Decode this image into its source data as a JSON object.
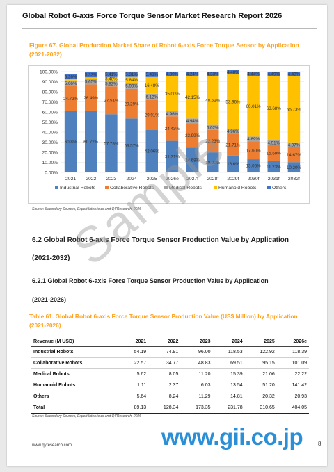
{
  "header": {
    "title": "Global Robot 6-axis Force Torque Sensor Market Research Report 2026"
  },
  "figure": {
    "title": "Figure 67.   Global Production Market Share of Robot 6-axis Force Torque Sensor by Application (2021-2032)",
    "source": "Source: Secondary Sources, Expert Interviews and QYResearch, 2026"
  },
  "chart_data": {
    "type": "bar",
    "stacked": true,
    "categories": [
      "2021",
      "2022",
      "2023",
      "2024",
      "2025",
      "2026e",
      "2027f",
      "2028f",
      "2029f",
      "2030f",
      "2031f",
      "2032f"
    ],
    "ylim": [
      0,
      100
    ],
    "yticks": [
      "0.00%",
      "10.00%",
      "20.00%",
      "30.00%",
      "40.00%",
      "50.00%",
      "60.00%",
      "70.00%",
      "80.00%",
      "90.00%",
      "100.00%"
    ],
    "legend_position": "bottom",
    "series": [
      {
        "name": "Industrial Robots",
        "color": "#4e81bd",
        "values": [
          60.8,
          60.72,
          57.78,
          53.57,
          42.06,
          31.31,
          24.68,
          19.9,
          16.6,
          13.06,
          11.23,
          10.2
        ],
        "labels": [
          "60.8%",
          "60.72%",
          "57.78%",
          "53.57%",
          "42.06%",
          "31.31%",
          "24.68%",
          "19.90%",
          "16.6%",
          "13.06%",
          "11.23%",
          "10.20%"
        ]
      },
      {
        "name": "Collaborative Robots",
        "color": "#ed7d31",
        "values": [
          24.72,
          26.49,
          27.51,
          29.29,
          29.91,
          24.43,
          23.99,
          22.23,
          21.71,
          17.6,
          15.69,
          14.67
        ],
        "labels": [
          "24.72%",
          "26.49%",
          "27.51%",
          "29.29%",
          "29.91%",
          "24.43%",
          "23.99%",
          "22.23%",
          "21.71%",
          "17.60%",
          "15.69%",
          "14.67%"
        ]
      },
      {
        "name": "Medical Robots",
        "color": "#a5a5a5",
        "values": [
          5.66,
          5.65,
          5.82,
          5.99,
          6.12,
          4.96,
          4.94,
          5.02,
          4.96,
          4.89,
          4.91,
          4.97
        ],
        "labels": [
          "5.66%",
          "5.65%",
          "5.82%",
          "5.99%",
          "6.12%",
          "4.96%",
          "4.94%",
          "5.02%",
          "4.96%",
          "4.89%",
          "4.91%",
          "4.97%"
        ]
      },
      {
        "name": "Humanoid Robots",
        "color": "#ffc000",
        "values": [
          1.25,
          1.47,
          3.48,
          5.84,
          16.48,
          35.0,
          42.15,
          48.52,
          53.96,
          60.01,
          63.68,
          65.73
        ],
        "labels": [
          "",
          "",
          "3.48%",
          "5.84%",
          "16.48%",
          "35.00%",
          "42.15%",
          "48.52%",
          "53.96%",
          "60.01%",
          "63.68%",
          "65.73%"
        ]
      },
      {
        "name": "Others",
        "color": "#4472c4",
        "values": [
          5.26,
          5.33,
          5.41,
          5.31,
          5.43,
          4.3,
          4.24,
          4.33,
          4.4,
          4.44,
          4.49,
          4.43
        ],
        "labels": [
          "5.26%",
          "5.33%",
          "5.41%",
          "5.31%",
          "5.43%",
          "4.30%",
          "4.24%",
          "4.33%",
          "4.40%",
          "4.44%",
          "4.49%",
          "4.43%"
        ]
      }
    ]
  },
  "section": {
    "h2_line1": "6.2   Global Robot 6-axis Force Torque Sensor Production Value by Application",
    "h2_line2": "(2021-2032)",
    "h3_line1": "6.2.1   Global Robot 6-axis Force Torque Sensor Production Value by Application",
    "h3_line2": "(2021-2026)"
  },
  "table": {
    "title": "Table 61.   Global Robot 6-axis Force Torque Sensor Production Value (US$ Million) by Application (2021-2026)",
    "columns": [
      "Revenue (M USD)",
      "2021",
      "2022",
      "2023",
      "2024",
      "2025",
      "2026e"
    ],
    "rows": [
      [
        "Industrial Robots",
        "54.19",
        "74.91",
        "96.00",
        "118.53",
        "122.92",
        "118.39"
      ],
      [
        "Collaborative Robots",
        "22.57",
        "34.77",
        "48.83",
        "69.51",
        "95.15",
        "101.09"
      ],
      [
        "Medical Robots",
        "5.62",
        "8.05",
        "11.20",
        "15.39",
        "21.06",
        "22.22"
      ],
      [
        "Humanoid Robots",
        "1.11",
        "2.37",
        "6.03",
        "13.54",
        "51.20",
        "141.42"
      ],
      [
        "Others",
        "5.64",
        "8.24",
        "11.29",
        "14.81",
        "20.32",
        "20.93"
      ],
      [
        "Total",
        "89.13",
        "128.34",
        "173.35",
        "231.78",
        "310.65",
        "404.05"
      ]
    ],
    "source": "Source: Secondary Sources, Expert Interviews and QYResearch, 2026"
  },
  "footer": {
    "url": "www.qyresearch.com",
    "page": "8"
  },
  "watermarks": {
    "sample": "Sample",
    "gii": "www.gii.co.jp"
  }
}
